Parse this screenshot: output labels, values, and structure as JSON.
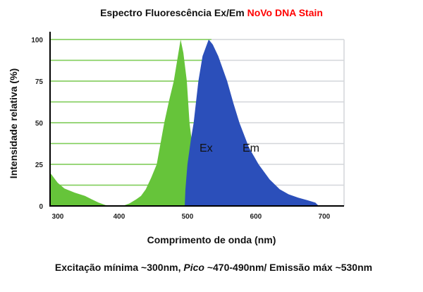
{
  "chart_data": {
    "type": "area",
    "title": {
      "prefix": "Espectro Fluorescência Ex/Em ",
      "highlight": "NoVo DNA Stain"
    },
    "title_highlight_color": "#ff0000",
    "xlabel": "Comprimento de onda (nm)",
    "ylabel": "Intensidade relativa (%)",
    "caption": {
      "part1": "Excitação mínima ~300nm, ",
      "italic": "Pico",
      "part2": " ~470-490nm/ Emissão máx ~530nm"
    },
    "xlim": [
      299,
      729
    ],
    "ylim": [
      0,
      100
    ],
    "xticks": [
      300,
      400,
      500,
      600,
      700
    ],
    "yticks": [
      0,
      25,
      50,
      75,
      100
    ],
    "grid": true,
    "series": [
      {
        "name": "Ex",
        "color": "#66c43a",
        "x": [
          299,
          310,
          320,
          335,
          350,
          360,
          370,
          380,
          390,
          405,
          415,
          425,
          432,
          439,
          447,
          455,
          466,
          473,
          480,
          486,
          490,
          494,
          499,
          503,
          506,
          509,
          512,
          496
        ],
        "y": [
          20,
          14,
          10.5,
          8,
          6,
          4,
          2,
          0.5,
          0,
          0,
          1.5,
          4,
          6,
          10,
          17,
          25,
          50,
          63,
          75,
          90,
          100,
          92,
          75,
          50,
          40,
          30,
          15,
          0
        ]
      },
      {
        "name": "Em",
        "color": "#2b4fba",
        "x": [
          496,
          497,
          500,
          505,
          509,
          516,
          522,
          531,
          537,
          545,
          558,
          567,
          576,
          590,
          604,
          620,
          635,
          648,
          662,
          675,
          687,
          692
        ],
        "y": [
          0,
          10,
          25,
          40,
          50,
          75,
          90,
          100,
          97,
          90,
          75,
          62,
          50,
          35,
          25,
          16,
          10,
          7,
          5,
          3.5,
          2,
          0
        ]
      }
    ]
  }
}
